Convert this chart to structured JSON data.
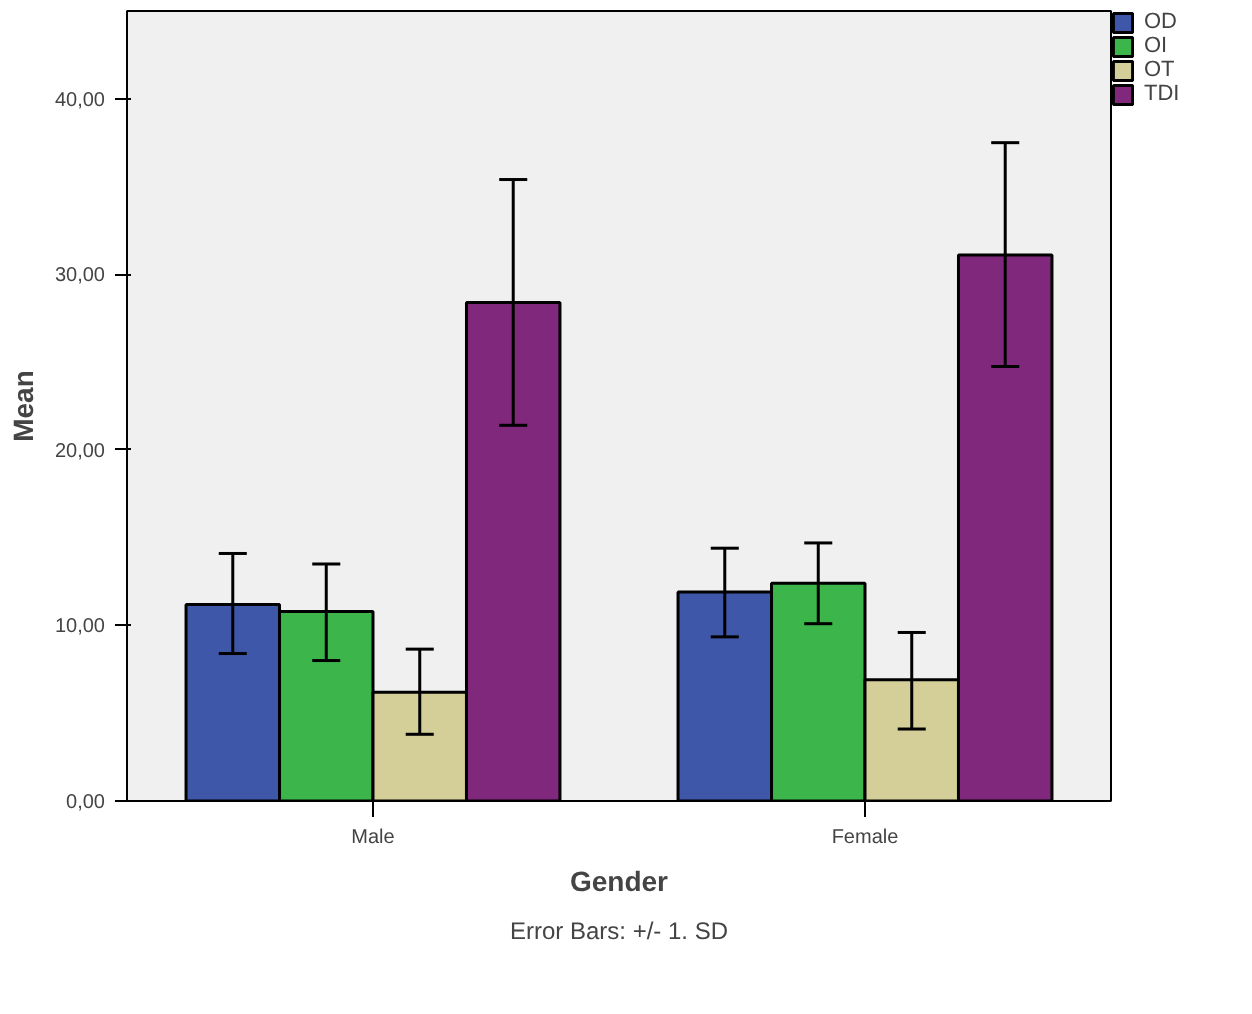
{
  "chart_data": {
    "type": "bar",
    "xlabel": "Gender",
    "ylabel": "Mean",
    "categories": [
      "Male",
      "Female"
    ],
    "series": [
      {
        "name": "OD",
        "color": "#3f57a8",
        "values": [
          11.2,
          11.9
        ],
        "errors": [
          [
            8.4,
            14.1
          ],
          [
            9.35,
            14.4
          ]
        ]
      },
      {
        "name": "OI",
        "color": "#3cb64b",
        "values": [
          10.8,
          12.4
        ],
        "errors": [
          [
            8.0,
            13.5
          ],
          [
            10.1,
            14.7
          ]
        ]
      },
      {
        "name": "OT",
        "color": "#d4cf98",
        "values": [
          6.2,
          6.9
        ],
        "errors": [
          [
            3.8,
            8.65
          ],
          [
            4.1,
            9.6
          ]
        ]
      },
      {
        "name": "TDI",
        "color": "#7f287c",
        "values": [
          28.4,
          31.1
        ],
        "errors": [
          [
            21.4,
            35.4
          ],
          [
            24.75,
            37.5
          ]
        ]
      }
    ],
    "ylim": [
      0,
      45
    ],
    "yticks": [
      {
        "value": 0,
        "label": "0,00"
      },
      {
        "value": 10,
        "label": "10,00"
      },
      {
        "value": 20,
        "label": "20,00"
      },
      {
        "value": 30,
        "label": "30,00"
      },
      {
        "value": 40,
        "label": "40,00"
      }
    ],
    "legend": "top right",
    "annotations": [
      "Error Bars: +/- 1. SD"
    ]
  }
}
